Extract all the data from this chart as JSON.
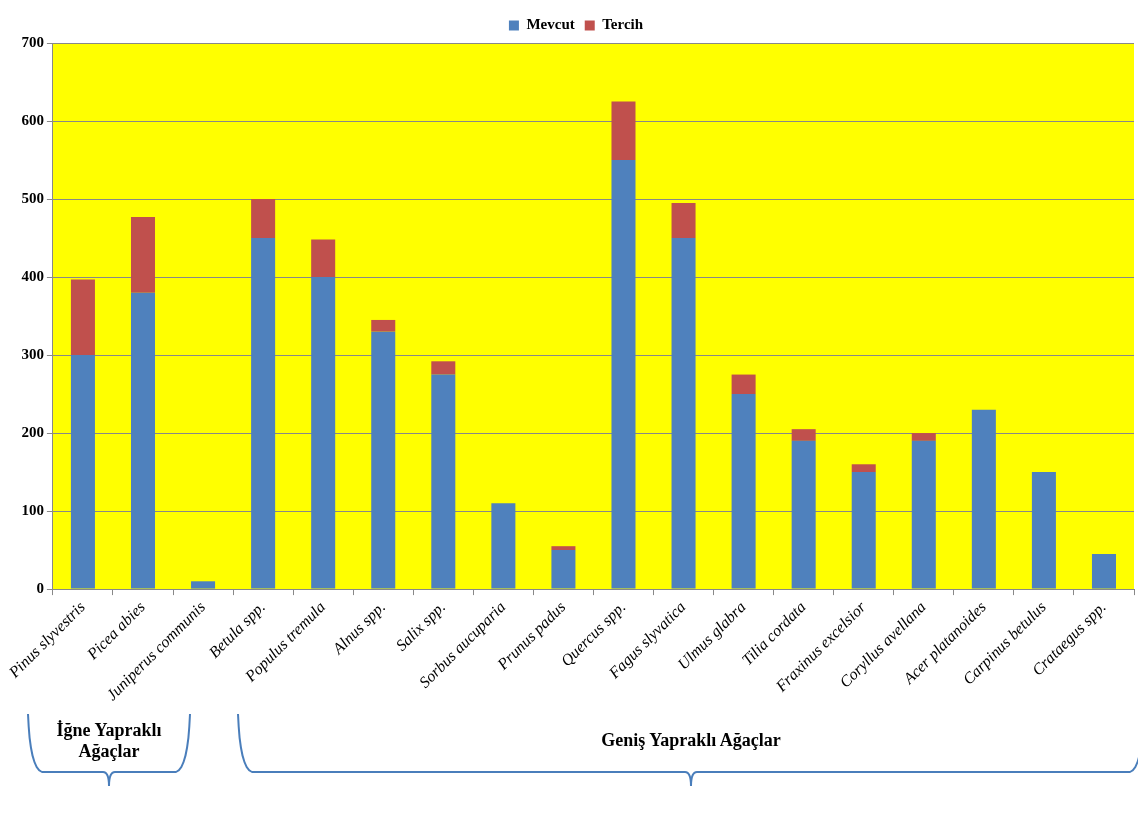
{
  "chart_data": {
    "type": "bar",
    "stacked": true,
    "categories": [
      "Pinus slyvestris",
      "Picea abies",
      "Juniperus communis",
      "Betula spp.",
      "Populus tremula",
      "Alnus spp.",
      "Salix spp.",
      "Sorbus aucuparia",
      "Prunus padus",
      "Quercus spp.",
      "Fagus slyvatica",
      "Ulmus glabra",
      "Tilia cordata",
      "Fraxinus excelsior",
      "Coryllus avellana",
      "Acer platanoides",
      "Carpinus betulus",
      "Crataegus spp."
    ],
    "series": [
      {
        "name": "Mevcut",
        "color": "#4f81bd",
        "values": [
          300,
          380,
          10,
          450,
          400,
          330,
          275,
          110,
          50,
          550,
          450,
          250,
          190,
          150,
          190,
          230,
          150,
          45
        ]
      },
      {
        "name": "Tercih",
        "color": "#c0504d",
        "values": [
          97,
          97,
          0,
          50,
          48,
          15,
          17,
          0,
          5,
          75,
          45,
          25,
          15,
          10,
          10,
          0,
          0,
          0
        ]
      }
    ],
    "ylim": [
      0,
      700
    ],
    "yticks": [
      0,
      100,
      200,
      300,
      400,
      500,
      600,
      700
    ],
    "grid": "y",
    "legend": "top",
    "annotations": [
      "İğne Yapraklı Ağaçlar",
      "Geniş Yapraklı Ağaçlar"
    ]
  }
}
